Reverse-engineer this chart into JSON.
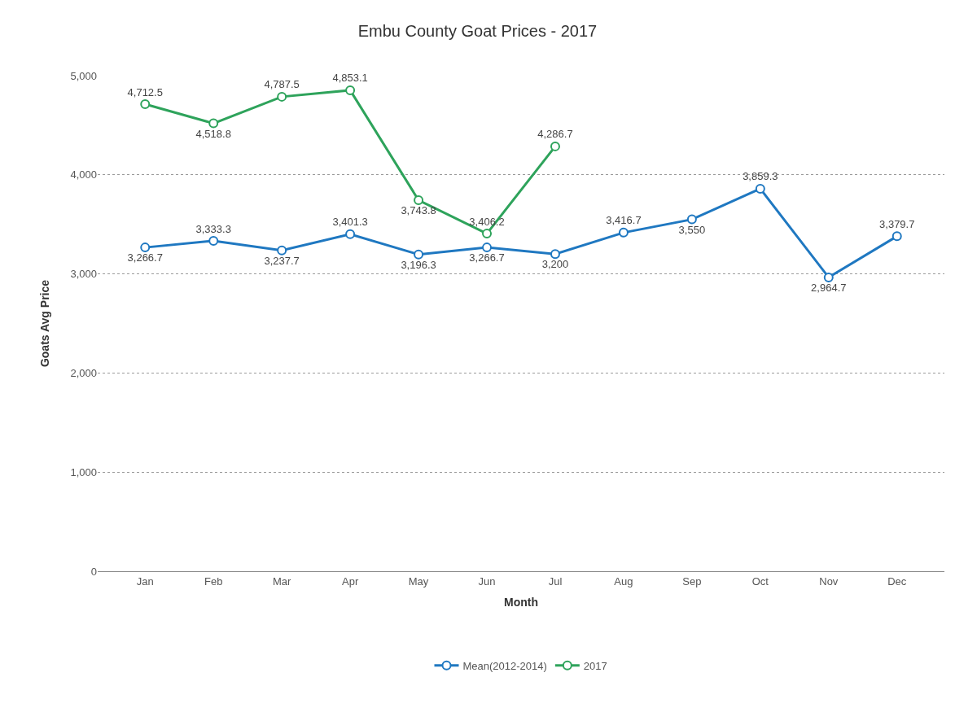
{
  "chart_data": {
    "type": "line",
    "title": "Embu County Goat Prices - 2017",
    "xlabel": "Month",
    "ylabel": "Goats Avg Price",
    "categories": [
      "Jan",
      "Feb",
      "Mar",
      "Apr",
      "May",
      "Jun",
      "Jul",
      "Aug",
      "Sep",
      "Oct",
      "Nov",
      "Dec"
    ],
    "series": [
      {
        "name": "Mean(2012-2014)",
        "color": "#1f78c1",
        "values": [
          3266.7,
          3333.3,
          3237.7,
          3401.3,
          3196.3,
          3266.7,
          3200,
          3416.7,
          3550,
          3859.3,
          2964.7,
          3379.7
        ],
        "value_labels": [
          "3,266.7",
          "3,333.3",
          "3,237.7",
          "3,401.3",
          "3,196.3",
          "3,266.7",
          "3,200",
          "3,416.7",
          "3,550",
          "3,859.3",
          "2,964.7",
          "3,379.7"
        ]
      },
      {
        "name": "2017",
        "color": "#2ea35b",
        "values": [
          4712.5,
          4518.8,
          4787.5,
          4853.1,
          3743.8,
          3406.2,
          4286.7,
          null,
          null,
          null,
          null,
          null
        ],
        "value_labels": [
          "4,712.5",
          "4,518.8",
          "4,787.5",
          "4,853.1",
          "3,743.8",
          "3,406.2",
          "4,286.7",
          null,
          null,
          null,
          null,
          null
        ]
      }
    ],
    "ylim": [
      0,
      5000
    ],
    "yticks": [
      0,
      {
        "value": 1000,
        "label": "1,000"
      },
      {
        "value": 2000,
        "label": "2,000"
      },
      {
        "value": 3000,
        "label": "3,000"
      },
      {
        "value": 4000,
        "label": "4,000"
      },
      {
        "value": 5000,
        "label": "5,000"
      }
    ],
    "grid": "y",
    "legend": "bottom",
    "marker": "circle",
    "line_style": "solid"
  }
}
